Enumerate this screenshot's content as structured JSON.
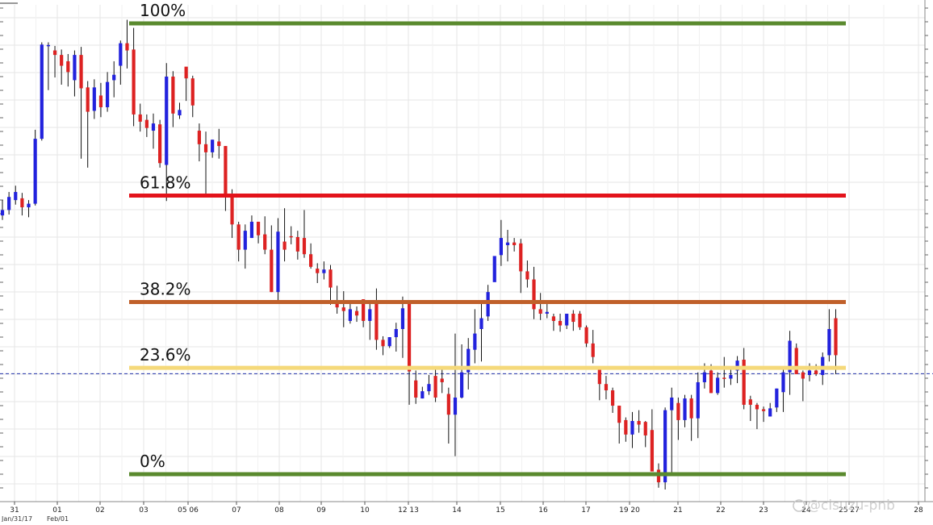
{
  "chart_data": {
    "type": "candlestick",
    "grid": true,
    "y_range": [
      0,
      1
    ],
    "fib_levels": [
      {
        "label": "100%",
        "value": 1.0,
        "color": "#5a8a2e"
      },
      {
        "label": "61.8%",
        "value": 0.618,
        "color": "#e3131b"
      },
      {
        "label": "38.2%",
        "value": 0.382,
        "color": "#c0602a"
      },
      {
        "label": "23.6%",
        "value": 0.236,
        "color": "#f5d97a"
      },
      {
        "label": "0%",
        "value": 0.0,
        "color": "#5a8a2e"
      }
    ],
    "current_price_line": {
      "value": 0.223,
      "color": "#2233aa"
    },
    "x_ticks": [
      "31",
      "01",
      "02",
      "03",
      "05 06",
      "07",
      "08",
      "09",
      "10",
      "12 13",
      "14",
      "15",
      "16",
      "17",
      "19 20",
      "21",
      "22",
      "23",
      "24",
      "25 27",
      "28"
    ],
    "date_labels": [
      "Jan/31/17",
      "Feb/01"
    ],
    "up_color": "#2222dd",
    "down_color": "#dd2222",
    "candles": [
      [
        0.574,
        0.586,
        0.608,
        0.564
      ],
      [
        0.586,
        0.615,
        0.626,
        0.576
      ],
      [
        0.608,
        0.626,
        0.64,
        0.598
      ],
      [
        0.612,
        0.592,
        0.624,
        0.574
      ],
      [
        0.592,
        0.6,
        0.608,
        0.57
      ],
      [
        0.6,
        0.744,
        0.764,
        0.596
      ],
      [
        0.744,
        0.953,
        0.958,
        0.74
      ],
      [
        0.952,
        0.952,
        0.958,
        0.852
      ],
      [
        0.94,
        0.93,
        0.95,
        0.88
      ],
      [
        0.93,
        0.906,
        0.942,
        0.864
      ],
      [
        0.916,
        0.892,
        0.932,
        0.86
      ],
      [
        0.874,
        0.93,
        0.94,
        0.838
      ],
      [
        0.93,
        0.856,
        0.948,
        0.7
      ],
      [
        0.858,
        0.804,
        0.872,
        0.68
      ],
      [
        0.806,
        0.858,
        0.876,
        0.788
      ],
      [
        0.84,
        0.814,
        0.868,
        0.792
      ],
      [
        0.814,
        0.87,
        0.892,
        0.804
      ],
      [
        0.874,
        0.886,
        0.916,
        0.836
      ],
      [
        0.906,
        0.956,
        0.962,
        0.864
      ],
      [
        0.956,
        0.94,
        1.008,
        0.9
      ],
      [
        0.942,
        0.798,
        0.99,
        0.772
      ],
      [
        0.798,
        0.782,
        0.822,
        0.76
      ],
      [
        0.786,
        0.768,
        0.798,
        0.748
      ],
      [
        0.762,
        0.778,
        0.8,
        0.722
      ],
      [
        0.776,
        0.69,
        0.786,
        0.68
      ],
      [
        0.686,
        0.882,
        0.912,
        0.606
      ],
      [
        0.882,
        0.8,
        0.894,
        0.77
      ],
      [
        0.796,
        0.808,
        0.824,
        0.788
      ],
      [
        0.904,
        0.878,
        0.9,
        0.828
      ],
      [
        0.878,
        0.818,
        0.884,
        0.792
      ],
      [
        0.762,
        0.732,
        0.778,
        0.694
      ],
      [
        0.732,
        0.714,
        0.76,
        0.62
      ],
      [
        0.714,
        0.742,
        0.742,
        0.702
      ],
      [
        0.738,
        0.728,
        0.766,
        0.7
      ],
      [
        0.728,
        0.614,
        0.728,
        0.584
      ],
      [
        0.614,
        0.554,
        0.632,
        0.524
      ],
      [
        0.554,
        0.498,
        0.56,
        0.472
      ],
      [
        0.498,
        0.54,
        0.554,
        0.456
      ],
      [
        0.524,
        0.56,
        0.574,
        0.524
      ],
      [
        0.56,
        0.53,
        0.56,
        0.512
      ],
      [
        0.532,
        0.498,
        0.572,
        0.488
      ],
      [
        0.498,
        0.404,
        0.552,
        0.404
      ],
      [
        0.404,
        0.538,
        0.568,
        0.386
      ],
      [
        0.516,
        0.498,
        0.59,
        0.472
      ],
      [
        0.528,
        0.526,
        0.55,
        0.51
      ],
      [
        0.526,
        0.494,
        0.54,
        0.476
      ],
      [
        0.524,
        0.488,
        0.586,
        0.48
      ],
      [
        0.488,
        0.46,
        0.512,
        0.456
      ],
      [
        0.456,
        0.446,
        0.468,
        0.424
      ],
      [
        0.446,
        0.454,
        0.472,
        0.432
      ],
      [
        0.454,
        0.414,
        0.464,
        0.376
      ],
      [
        0.384,
        0.37,
        0.418,
        0.356
      ],
      [
        0.37,
        0.362,
        0.406,
        0.326
      ],
      [
        0.34,
        0.366,
        0.382,
        0.334
      ],
      [
        0.362,
        0.352,
        0.372,
        0.338
      ],
      [
        0.388,
        0.34,
        0.388,
        0.326
      ],
      [
        0.34,
        0.366,
        0.382,
        0.298
      ],
      [
        0.386,
        0.298,
        0.412,
        0.276
      ],
      [
        0.298,
        0.284,
        0.306,
        0.264
      ],
      [
        0.284,
        0.304,
        0.304,
        0.28
      ],
      [
        0.304,
        0.322,
        0.336,
        0.272
      ],
      [
        0.322,
        0.368,
        0.394,
        0.258
      ],
      [
        0.382,
        0.228,
        0.382,
        0.154
      ],
      [
        0.208,
        0.17,
        0.23,
        0.156
      ],
      [
        0.168,
        0.184,
        0.194,
        0.168
      ],
      [
        0.184,
        0.2,
        0.22,
        0.176
      ],
      [
        0.218,
        0.17,
        0.236,
        0.16
      ],
      [
        0.212,
        0.204,
        0.236,
        0.18
      ],
      [
        0.178,
        0.132,
        0.192,
        0.068
      ],
      [
        0.132,
        0.17,
        0.312,
        0.04
      ],
      [
        0.17,
        0.226,
        0.288,
        0.168
      ],
      [
        0.226,
        0.278,
        0.302,
        0.188
      ],
      [
        0.276,
        0.312,
        0.366,
        0.246
      ],
      [
        0.322,
        0.346,
        0.38,
        0.25
      ],
      [
        0.35,
        0.404,
        0.42,
        0.34
      ],
      [
        0.426,
        0.484,
        0.48,
        0.462
      ],
      [
        0.486,
        0.524,
        0.564,
        0.462
      ],
      [
        0.508,
        0.514,
        0.542,
        0.472
      ],
      [
        0.514,
        0.508,
        0.524,
        0.494
      ],
      [
        0.512,
        0.45,
        0.522,
        0.402
      ],
      [
        0.45,
        0.432,
        0.474,
        0.414
      ],
      [
        0.432,
        0.366,
        0.46,
        0.344
      ],
      [
        0.366,
        0.356,
        0.402,
        0.342
      ],
      [
        0.356,
        0.36,
        0.38,
        0.346
      ],
      [
        0.35,
        0.34,
        0.356,
        0.318
      ],
      [
        0.34,
        0.33,
        0.356,
        0.316
      ],
      [
        0.33,
        0.356,
        0.356,
        0.322
      ],
      [
        0.356,
        0.338,
        0.364,
        0.318
      ],
      [
        0.356,
        0.326,
        0.362,
        0.32
      ],
      [
        0.326,
        0.29,
        0.33,
        0.282
      ],
      [
        0.29,
        0.26,
        0.32,
        0.246
      ],
      [
        0.238,
        0.2,
        0.23,
        0.164
      ],
      [
        0.2,
        0.186,
        0.218,
        0.166
      ],
      [
        0.186,
        0.152,
        0.192,
        0.136
      ],
      [
        0.152,
        0.114,
        0.152,
        0.068
      ],
      [
        0.12,
        0.088,
        0.126,
        0.072
      ],
      [
        0.088,
        0.118,
        0.138,
        0.058
      ],
      [
        0.118,
        0.11,
        0.142,
        0.092
      ],
      [
        0.116,
        0.086,
        0.118,
        0.06
      ],
      [
        0.098,
        0.006,
        0.144,
        0.012
      ],
      [
        0.01,
        -0.018,
        0.024,
        -0.03
      ],
      [
        -0.018,
        0.142,
        0.148,
        -0.034
      ],
      [
        0.142,
        0.17,
        0.192,
        0.002
      ],
      [
        0.158,
        0.12,
        0.17,
        0.076
      ],
      [
        0.12,
        0.168,
        0.176,
        0.104
      ],
      [
        0.168,
        0.124,
        0.176,
        0.074
      ],
      [
        0.124,
        0.204,
        0.226,
        0.08
      ],
      [
        0.204,
        0.226,
        0.246,
        0.19
      ],
      [
        0.23,
        0.18,
        0.244,
        0.18
      ],
      [
        0.18,
        0.214,
        0.226,
        0.176
      ],
      [
        0.214,
        0.212,
        0.26,
        0.192
      ],
      [
        0.212,
        0.22,
        0.234,
        0.198
      ],
      [
        0.23,
        0.252,
        0.262,
        0.202
      ],
      [
        0.254,
        0.154,
        0.28,
        0.144
      ],
      [
        0.166,
        0.154,
        0.174,
        0.118
      ],
      [
        0.154,
        0.144,
        0.158,
        0.1
      ],
      [
        0.144,
        0.14,
        0.15,
        0.116
      ],
      [
        0.128,
        0.146,
        0.158,
        0.128
      ],
      [
        0.148,
        0.19,
        0.19,
        0.138
      ],
      [
        0.182,
        0.226,
        0.236,
        0.138
      ],
      [
        0.226,
        0.296,
        0.318,
        0.176
      ],
      [
        0.28,
        0.222,
        0.29,
        0.226
      ],
      [
        0.226,
        0.212,
        0.23,
        0.162
      ],
      [
        0.22,
        0.23,
        0.246,
        0.206
      ],
      [
        0.23,
        0.222,
        0.244,
        0.218
      ],
      [
        0.22,
        0.26,
        0.27,
        0.198
      ],
      [
        0.264,
        0.322,
        0.366,
        0.25
      ],
      [
        0.346,
        0.264,
        0.366,
        0.222
      ]
    ]
  },
  "watermark": "@cisuzu-pnb"
}
